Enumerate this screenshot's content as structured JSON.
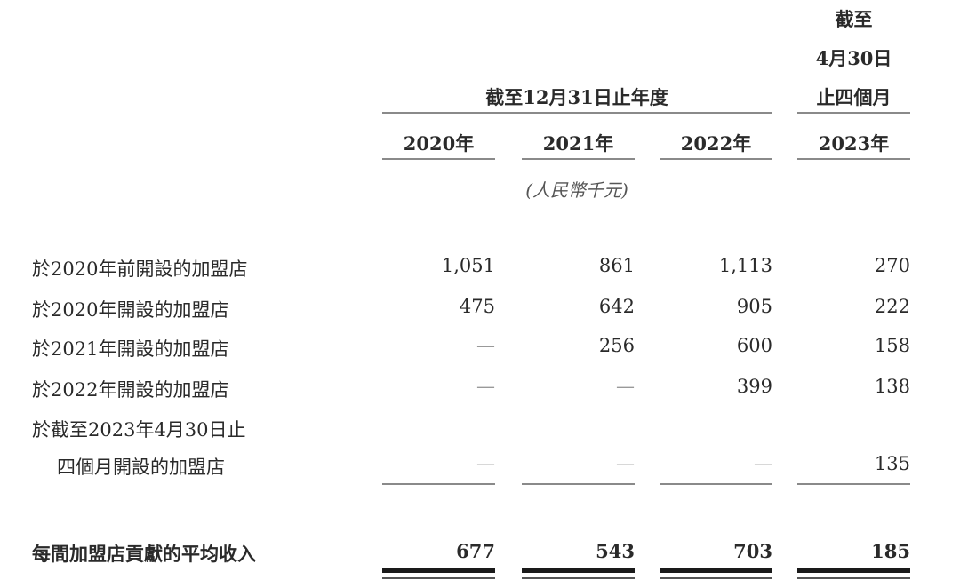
{
  "header": {
    "period_group": "截至12月31日止年度",
    "interim_line1": "截至",
    "interim_line2": "4月30日",
    "interim_line3": "止四個月",
    "years": [
      "2020年",
      "2021年",
      "2022年",
      "2023年"
    ],
    "unit": "(人民幣千元)"
  },
  "rows": [
    {
      "label": "於2020年前開設的加盟店",
      "values": [
        "1,051",
        "861",
        "1,113",
        "270"
      ]
    },
    {
      "label": "於2020年開設的加盟店",
      "values": [
        "475",
        "642",
        "905",
        "222"
      ]
    },
    {
      "label": "於2021年開設的加盟店",
      "values": [
        "—",
        "256",
        "600",
        "158"
      ]
    },
    {
      "label": "於2022年開設的加盟店",
      "values": [
        "—",
        "—",
        "399",
        "138"
      ]
    },
    {
      "label": "於截至2023年4月30日止",
      "label2": "四個月開設的加盟店",
      "values": [
        "—",
        "—",
        "—",
        "135"
      ]
    }
  ],
  "total": {
    "label": "每間加盟店貢獻的平均收入",
    "values": [
      "677",
      "543",
      "703",
      "185"
    ]
  }
}
